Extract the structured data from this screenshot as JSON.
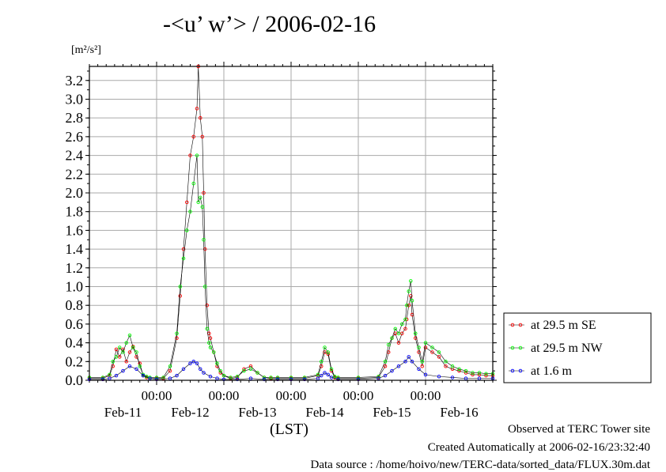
{
  "title": "-<u’ w’> / 2006-02-16",
  "footer": {
    "observed": "Observed at TERC Tower site",
    "created": "Created Automatically at 2006-02-16/23:32:40",
    "source": "Data source : /home/hoivo/new/TERC-data/sorted_data/FLUX.30m.dat"
  },
  "chart_data": {
    "type": "line",
    "ylabel_unit": "[m²/s²]",
    "xlabel": "(LST)",
    "ylim": [
      0.0,
      3.35
    ],
    "xlim": [
      10.0,
      16.0
    ],
    "yticks": [
      "0.0",
      "0.2",
      "0.4",
      "0.6",
      "0.8",
      "1.0",
      "1.2",
      "1.4",
      "1.6",
      "1.8",
      "2.0",
      "2.2",
      "2.4",
      "2.6",
      "2.8",
      "3.0",
      "3.2"
    ],
    "xtick_time_labels": [
      "00:00",
      "00:00",
      "00:00",
      "00:00",
      "00:00"
    ],
    "xtick_day_labels": [
      "Feb-11",
      "Feb-12",
      "Feb-13",
      "Feb-14",
      "Feb-15",
      "Feb-16"
    ],
    "grid": true,
    "legend_position": "right",
    "series": [
      {
        "name": "at 29.5 m SE",
        "color": "#ff0000",
        "x": [
          10.0,
          10.2,
          10.3,
          10.35,
          10.4,
          10.45,
          10.5,
          10.55,
          10.6,
          10.65,
          10.7,
          10.75,
          10.8,
          10.85,
          10.9,
          11.0,
          11.1,
          11.2,
          11.3,
          11.35,
          11.4,
          11.45,
          11.5,
          11.55,
          11.6,
          11.62,
          11.65,
          11.68,
          11.7,
          11.72,
          11.75,
          11.78,
          11.8,
          11.85,
          11.9,
          11.95,
          12.0,
          12.1,
          12.2,
          12.3,
          12.4,
          12.5,
          12.6,
          12.7,
          12.8,
          13.0,
          13.2,
          13.4,
          13.45,
          13.5,
          13.55,
          13.6,
          13.65,
          13.7,
          14.0,
          14.3,
          14.4,
          14.45,
          14.5,
          14.55,
          14.6,
          14.65,
          14.7,
          14.72,
          14.75,
          14.78,
          14.8,
          14.85,
          14.9,
          14.95,
          15.0,
          15.1,
          15.2,
          15.3,
          15.4,
          15.5,
          15.6,
          15.7,
          15.8,
          15.9,
          16.0
        ],
        "y": [
          0.02,
          0.02,
          0.05,
          0.15,
          0.33,
          0.25,
          0.33,
          0.2,
          0.3,
          0.36,
          0.25,
          0.18,
          0.05,
          0.03,
          0.02,
          0.02,
          0.02,
          0.1,
          0.45,
          0.9,
          1.4,
          1.9,
          2.4,
          2.6,
          2.9,
          3.35,
          2.8,
          2.6,
          2.0,
          1.4,
          0.8,
          0.5,
          0.45,
          0.3,
          0.15,
          0.08,
          0.05,
          0.02,
          0.03,
          0.12,
          0.15,
          0.08,
          0.03,
          0.02,
          0.02,
          0.02,
          0.02,
          0.05,
          0.15,
          0.3,
          0.28,
          0.1,
          0.03,
          0.02,
          0.02,
          0.03,
          0.15,
          0.3,
          0.45,
          0.5,
          0.4,
          0.5,
          0.55,
          0.65,
          0.8,
          0.9,
          0.7,
          0.45,
          0.3,
          0.15,
          0.35,
          0.3,
          0.25,
          0.15,
          0.12,
          0.1,
          0.08,
          0.06,
          0.06,
          0.05,
          0.05
        ]
      },
      {
        "name": "at 29.5 m NW",
        "color": "#00ff00",
        "x": [
          10.0,
          10.2,
          10.3,
          10.35,
          10.4,
          10.45,
          10.5,
          10.55,
          10.6,
          10.65,
          10.7,
          10.75,
          10.8,
          10.85,
          10.9,
          11.0,
          11.1,
          11.2,
          11.3,
          11.35,
          11.4,
          11.45,
          11.5,
          11.55,
          11.6,
          11.62,
          11.65,
          11.68,
          11.7,
          11.72,
          11.75,
          11.78,
          11.8,
          11.85,
          11.9,
          11.95,
          12.0,
          12.1,
          12.2,
          12.3,
          12.4,
          12.5,
          12.6,
          12.7,
          12.8,
          13.0,
          13.2,
          13.4,
          13.45,
          13.5,
          13.55,
          13.6,
          13.65,
          13.7,
          14.0,
          14.3,
          14.4,
          14.45,
          14.5,
          14.55,
          14.6,
          14.65,
          14.7,
          14.72,
          14.75,
          14.78,
          14.8,
          14.85,
          14.9,
          14.95,
          15.0,
          15.1,
          15.2,
          15.3,
          15.4,
          15.5,
          15.6,
          15.7,
          15.8,
          15.9,
          16.0
        ],
        "y": [
          0.03,
          0.03,
          0.06,
          0.2,
          0.25,
          0.35,
          0.3,
          0.4,
          0.48,
          0.35,
          0.3,
          0.15,
          0.06,
          0.04,
          0.03,
          0.03,
          0.03,
          0.15,
          0.5,
          1.0,
          1.3,
          1.6,
          1.8,
          2.1,
          2.4,
          1.9,
          1.95,
          1.85,
          1.5,
          1.0,
          0.55,
          0.4,
          0.35,
          0.3,
          0.18,
          0.1,
          0.05,
          0.03,
          0.04,
          0.1,
          0.12,
          0.08,
          0.03,
          0.03,
          0.03,
          0.03,
          0.03,
          0.06,
          0.2,
          0.35,
          0.3,
          0.12,
          0.04,
          0.03,
          0.03,
          0.04,
          0.2,
          0.38,
          0.45,
          0.55,
          0.5,
          0.6,
          0.65,
          0.8,
          0.95,
          1.06,
          0.85,
          0.5,
          0.35,
          0.2,
          0.4,
          0.35,
          0.3,
          0.2,
          0.15,
          0.12,
          0.1,
          0.08,
          0.08,
          0.07,
          0.07
        ]
      },
      {
        "name": "at 1.6 m",
        "color": "#0000ff",
        "x": [
          10.0,
          10.2,
          10.3,
          10.4,
          10.5,
          10.6,
          10.7,
          10.8,
          10.9,
          11.0,
          11.2,
          11.3,
          11.4,
          11.5,
          11.55,
          11.6,
          11.65,
          11.7,
          11.8,
          11.9,
          12.0,
          12.2,
          12.4,
          12.6,
          12.8,
          13.0,
          13.2,
          13.4,
          13.45,
          13.5,
          13.55,
          13.6,
          13.7,
          14.0,
          14.3,
          14.4,
          14.5,
          14.6,
          14.7,
          14.75,
          14.8,
          14.9,
          15.0,
          15.2,
          15.4,
          15.6,
          15.8,
          16.0
        ],
        "y": [
          0.01,
          0.01,
          0.02,
          0.05,
          0.1,
          0.15,
          0.12,
          0.05,
          0.02,
          0.01,
          0.02,
          0.05,
          0.12,
          0.18,
          0.2,
          0.18,
          0.12,
          0.08,
          0.04,
          0.02,
          0.01,
          0.01,
          0.02,
          0.01,
          0.01,
          0.01,
          0.01,
          0.02,
          0.05,
          0.08,
          0.06,
          0.03,
          0.01,
          0.01,
          0.02,
          0.05,
          0.1,
          0.15,
          0.2,
          0.25,
          0.2,
          0.12,
          0.06,
          0.04,
          0.03,
          0.02,
          0.02,
          0.02
        ]
      }
    ]
  }
}
